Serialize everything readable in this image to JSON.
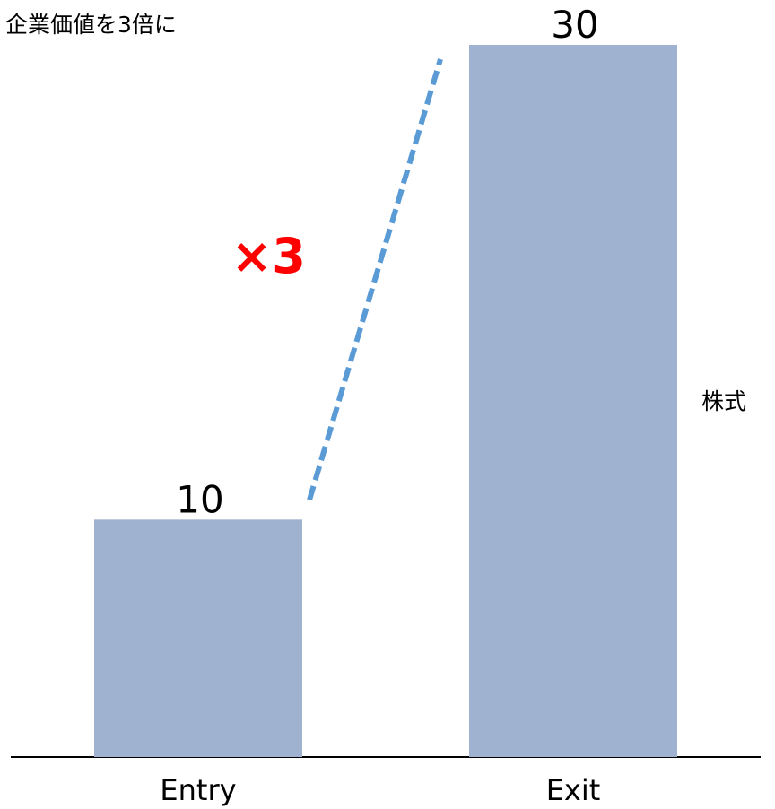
{
  "chart_data": {
    "type": "bar",
    "title": "企業価値を3倍に",
    "categories": [
      "Entry",
      "Exit"
    ],
    "series": [
      {
        "name": "株式",
        "values": [
          10,
          30
        ]
      }
    ],
    "data_labels": [
      "10",
      "30"
    ],
    "ylim": [
      0,
      30
    ],
    "grid": false,
    "annotation": {
      "text": "×3",
      "color": "#ff0000"
    },
    "colors": {
      "bar": "#9fb2cf",
      "baseline": "#000000",
      "growth_line": "#5b9bd5",
      "annotation": "#ff0000"
    }
  }
}
